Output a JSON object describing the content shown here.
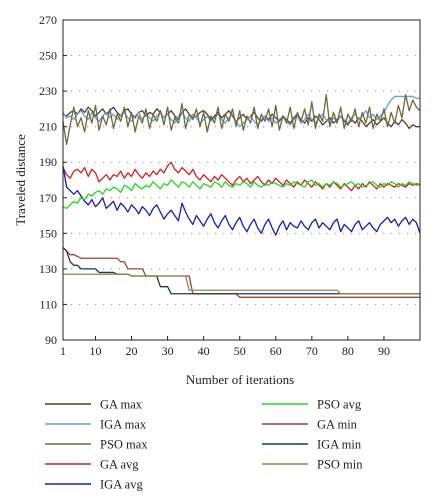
{
  "chart_data": {
    "type": "line",
    "xlabel": "Number of iterations",
    "ylabel": "Traveled distance",
    "xlim": [
      1,
      100
    ],
    "ylim": [
      90,
      270
    ],
    "x_ticks": [
      1,
      10,
      20,
      30,
      40,
      50,
      60,
      70,
      80,
      90
    ],
    "y_ticks": [
      90,
      110,
      130,
      150,
      170,
      190,
      210,
      230,
      250,
      270
    ],
    "grid": "dotted horizontal",
    "legend_position": "bottom, two columns",
    "x": [
      1,
      2,
      3,
      4,
      5,
      6,
      7,
      8,
      9,
      10,
      11,
      12,
      13,
      14,
      15,
      16,
      17,
      18,
      19,
      20,
      21,
      22,
      23,
      24,
      25,
      26,
      27,
      28,
      29,
      30,
      31,
      32,
      33,
      34,
      35,
      36,
      37,
      38,
      39,
      40,
      41,
      42,
      43,
      44,
      45,
      46,
      47,
      48,
      49,
      50,
      51,
      52,
      53,
      54,
      55,
      56,
      57,
      58,
      59,
      60,
      61,
      62,
      63,
      64,
      65,
      66,
      67,
      68,
      69,
      70,
      71,
      72,
      73,
      74,
      75,
      76,
      77,
      78,
      79,
      80,
      81,
      82,
      83,
      84,
      85,
      86,
      87,
      88,
      89,
      90,
      91,
      92,
      93,
      94,
      95,
      96,
      97,
      98,
      99,
      100
    ],
    "series": [
      {
        "name": "GA max",
        "color": "#5a3a2e",
        "values": [
          217,
          216,
          218,
          219,
          217,
          220,
          218,
          221,
          219,
          216,
          218,
          220,
          217,
          219,
          221,
          218,
          216,
          219,
          220,
          217,
          215,
          218,
          219,
          216,
          218,
          217,
          220,
          218,
          215,
          217,
          219,
          216,
          214,
          218,
          220,
          217,
          215,
          216,
          218,
          219,
          217,
          214,
          216,
          218,
          215,
          217,
          219,
          216,
          213,
          215,
          217,
          214,
          216,
          218,
          215,
          213,
          216,
          214,
          217,
          215,
          213,
          216,
          214,
          212,
          215,
          217,
          214,
          212,
          215,
          213,
          216,
          214,
          211,
          213,
          215,
          212,
          214,
          216,
          213,
          211,
          214,
          212,
          215,
          213,
          210,
          212,
          214,
          211,
          213,
          215,
          212,
          210,
          213,
          211,
          214,
          212,
          209,
          211,
          210,
          210
        ]
      },
      {
        "name": "IGA max",
        "color": "#6e9ccc",
        "values": [
          218,
          215,
          216,
          214,
          217,
          219,
          216,
          214,
          218,
          215,
          213,
          216,
          218,
          215,
          217,
          214,
          216,
          218,
          215,
          213,
          216,
          218,
          214,
          217,
          215,
          213,
          216,
          218,
          215,
          217,
          214,
          212,
          216,
          218,
          215,
          213,
          217,
          215,
          212,
          214,
          216,
          213,
          215,
          217,
          214,
          212,
          215,
          217,
          213,
          210,
          212,
          214,
          216,
          213,
          211,
          214,
          216,
          213,
          215,
          212,
          214,
          216,
          213,
          211,
          214,
          216,
          212,
          214,
          217,
          214,
          212,
          215,
          217,
          214,
          212,
          215,
          213,
          216,
          214,
          212,
          215,
          217,
          214,
          216,
          219,
          215,
          217,
          214,
          216,
          218,
          222,
          225,
          227,
          227,
          227,
          227,
          227,
          227,
          226,
          226
        ]
      },
      {
        "name": "PSO max",
        "color": "#6b6b3c",
        "values": [
          213,
          200,
          211,
          221,
          210,
          215,
          207,
          219,
          212,
          222,
          208,
          216,
          211,
          220,
          209,
          217,
          213,
          221,
          210,
          218,
          207,
          216,
          212,
          220,
          209,
          217,
          213,
          219,
          211,
          221,
          208,
          215,
          212,
          223,
          209,
          217,
          214,
          220,
          210,
          218,
          207,
          216,
          212,
          221,
          209,
          217,
          213,
          220,
          210,
          219,
          208,
          216,
          212,
          221,
          209,
          217,
          213,
          220,
          210,
          222,
          208,
          216,
          212,
          221,
          209,
          218,
          213,
          220,
          211,
          224,
          209,
          217,
          213,
          228,
          210,
          218,
          212,
          221,
          209,
          217,
          213,
          220,
          210,
          218,
          212,
          221,
          209,
          217,
          213,
          220,
          210,
          218,
          212,
          222,
          215,
          228,
          219,
          225,
          221,
          219
        ]
      },
      {
        "name": "GA avg",
        "color": "#d02020",
        "values": [
          187,
          183,
          181,
          185,
          186,
          184,
          187,
          182,
          186,
          184,
          179,
          181,
          183,
          180,
          183,
          182,
          185,
          181,
          184,
          182,
          186,
          183,
          181,
          184,
          182,
          185,
          183,
          186,
          184,
          188,
          190,
          186,
          184,
          187,
          185,
          183,
          186,
          182,
          180,
          183,
          181,
          179,
          182,
          180,
          183,
          181,
          179,
          177,
          180,
          182,
          179,
          181,
          178,
          180,
          182,
          179,
          177,
          180,
          178,
          181,
          179,
          177,
          180,
          178,
          176,
          179,
          177,
          180,
          178,
          176,
          179,
          177,
          175,
          178,
          176,
          179,
          177,
          175,
          178,
          176,
          174,
          177,
          175,
          178,
          176,
          179,
          177,
          175,
          178,
          176,
          178,
          177,
          176,
          178,
          177,
          176,
          178,
          177,
          178,
          177
        ]
      },
      {
        "name": "IGA avg",
        "color": "#1a1ab8",
        "values": [
          188,
          176,
          174,
          172,
          174,
          171,
          168,
          166,
          169,
          165,
          167,
          170,
          164,
          166,
          168,
          163,
          167,
          165,
          162,
          166,
          164,
          161,
          165,
          163,
          160,
          164,
          166,
          162,
          158,
          161,
          163,
          160,
          157,
          167,
          162,
          158,
          155,
          160,
          157,
          154,
          158,
          161,
          156,
          153,
          157,
          160,
          155,
          152,
          156,
          159,
          154,
          151,
          155,
          158,
          153,
          150,
          155,
          158,
          153,
          149,
          154,
          157,
          152,
          156,
          154,
          153,
          157,
          154,
          152,
          156,
          158,
          153,
          156,
          154,
          152,
          156,
          158,
          151,
          155,
          153,
          151,
          155,
          157,
          152,
          154,
          156,
          153,
          151,
          155,
          157,
          159,
          156,
          158,
          154,
          157,
          159,
          155,
          158,
          156,
          150
        ]
      },
      {
        "name": "PSO avg",
        "color": "#22d822",
        "values": [
          165,
          164,
          166,
          168,
          167,
          170,
          169,
          172,
          171,
          173,
          174,
          172,
          175,
          174,
          176,
          175,
          173,
          177,
          176,
          174,
          178,
          176,
          175,
          177,
          176,
          179,
          177,
          175,
          178,
          177,
          180,
          178,
          176,
          179,
          178,
          176,
          179,
          177,
          175,
          178,
          177,
          176,
          179,
          178,
          176,
          179,
          177,
          176,
          178,
          177,
          179,
          178,
          176,
          179,
          177,
          176,
          178,
          177,
          179,
          178,
          177,
          176,
          178,
          177,
          179,
          178,
          177,
          176,
          179,
          180,
          177,
          178,
          176,
          178,
          177,
          179,
          178,
          176,
          177,
          178,
          179,
          177,
          178,
          176,
          177,
          178,
          179,
          177,
          176,
          178,
          177,
          179,
          178,
          176,
          178,
          177,
          179,
          178,
          177,
          178
        ]
      },
      {
        "name": "GA min",
        "color": "#a0403a",
        "values": [
          142,
          140,
          138,
          138,
          137,
          136,
          136,
          136,
          136,
          136,
          136,
          136,
          136,
          136,
          136,
          136,
          134,
          134,
          130,
          130,
          130,
          130,
          130,
          126,
          126,
          126,
          126,
          126,
          126,
          126,
          126,
          126,
          126,
          126,
          126,
          126,
          116,
          116,
          116,
          116,
          116,
          116,
          116,
          116,
          116,
          116,
          116,
          116,
          116,
          114,
          114,
          114,
          114,
          114,
          114,
          114,
          114,
          114,
          114,
          114,
          114,
          114,
          114,
          114,
          114,
          114,
          114,
          114,
          114,
          114,
          114,
          114,
          114,
          114,
          114,
          114,
          114,
          114,
          114,
          114,
          114,
          114,
          114,
          114,
          114,
          114,
          114,
          114,
          114,
          114,
          114,
          114,
          114,
          114,
          114,
          114,
          114,
          114,
          114,
          114
        ]
      },
      {
        "name": "IGA min",
        "color": "#1e3a4a",
        "values": [
          142,
          140,
          134,
          132,
          132,
          130,
          130,
          130,
          130,
          130,
          128,
          128,
          128,
          128,
          128,
          127,
          127,
          127,
          127,
          126,
          126,
          126,
          126,
          126,
          126,
          126,
          126,
          120,
          120,
          120,
          116,
          116,
          116,
          116,
          116,
          116,
          116,
          116,
          116,
          116,
          116,
          116,
          116,
          116,
          116,
          116,
          116,
          116,
          116,
          116,
          116,
          116,
          116,
          116,
          116,
          116,
          116,
          116,
          116,
          116,
          116,
          116,
          116,
          116,
          116,
          116,
          116,
          116,
          116,
          116,
          116,
          116,
          116,
          116,
          116,
          116,
          116,
          116,
          116,
          116,
          116,
          116,
          116,
          116,
          116,
          116,
          116,
          116,
          116,
          116,
          116,
          116,
          116,
          116,
          116,
          116,
          116,
          116,
          116,
          116
        ]
      },
      {
        "name": "PSO min",
        "color": "#8a8a4a",
        "values": [
          127,
          127,
          127,
          127,
          127,
          127,
          127,
          127,
          127,
          127,
          127,
          127,
          127,
          127,
          127,
          127,
          127,
          127,
          127,
          126,
          126,
          126,
          126,
          126,
          126,
          126,
          126,
          126,
          126,
          126,
          126,
          126,
          126,
          126,
          126,
          118,
          118,
          118,
          118,
          118,
          118,
          118,
          118,
          118,
          118,
          118,
          118,
          118,
          118,
          118,
          118,
          118,
          118,
          118,
          118,
          118,
          118,
          118,
          118,
          118,
          118,
          118,
          118,
          118,
          118,
          118,
          118,
          118,
          118,
          118,
          118,
          118,
          118,
          118,
          118,
          118,
          118,
          116,
          116,
          116,
          116,
          116,
          116,
          116,
          116,
          116,
          116,
          116,
          116,
          116,
          116,
          116,
          116,
          116,
          116,
          116,
          116,
          116,
          116,
          116
        ]
      }
    ]
  }
}
